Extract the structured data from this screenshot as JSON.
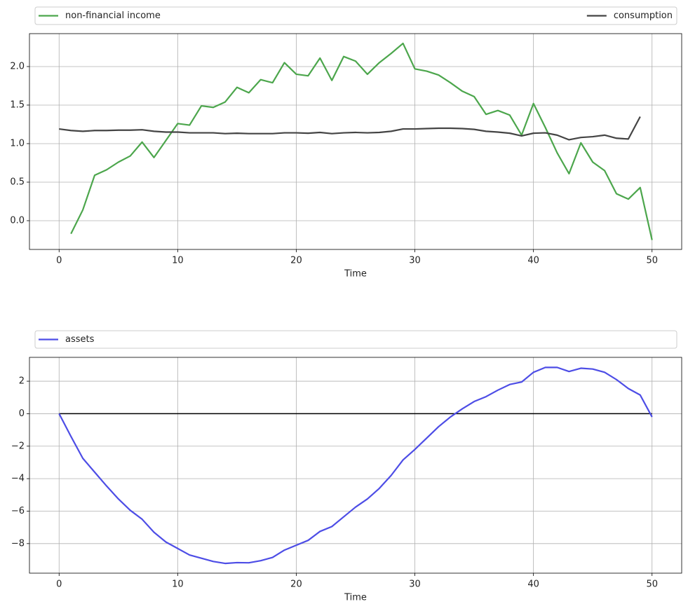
{
  "chart_data": [
    {
      "type": "line",
      "x_label": "Time",
      "legend": "above",
      "grid": true,
      "x": [
        0,
        1,
        2,
        3,
        4,
        5,
        6,
        7,
        8,
        9,
        10,
        11,
        12,
        13,
        14,
        15,
        16,
        17,
        18,
        19,
        20,
        21,
        22,
        23,
        24,
        25,
        26,
        27,
        28,
        29,
        30,
        31,
        32,
        33,
        34,
        35,
        36,
        37,
        38,
        39,
        40,
        41,
        42,
        43,
        44,
        45,
        46,
        47,
        48,
        49,
        50
      ],
      "series": [
        {
          "name": "non-financial income",
          "color": "#4ca64c",
          "values": [
            null,
            -0.17,
            0.14,
            0.59,
            0.66,
            0.76,
            0.84,
            1.02,
            0.82,
            1.04,
            1.26,
            1.24,
            1.49,
            1.47,
            1.54,
            1.73,
            1.66,
            1.83,
            1.79,
            2.05,
            1.9,
            1.88,
            2.11,
            1.82,
            2.13,
            2.07,
            1.9,
            2.05,
            2.17,
            2.3,
            1.97,
            1.94,
            1.89,
            1.79,
            1.68,
            1.61,
            1.38,
            1.43,
            1.37,
            1.11,
            1.52,
            1.21,
            0.88,
            0.61,
            1.01,
            0.76,
            0.65,
            0.35,
            0.28,
            0.43,
            -0.25
          ]
        },
        {
          "name": "consumption",
          "color": "#444444",
          "values": [
            1.19,
            1.17,
            1.16,
            1.17,
            1.17,
            1.175,
            1.175,
            1.18,
            1.16,
            1.15,
            1.15,
            1.14,
            1.14,
            1.14,
            1.13,
            1.135,
            1.13,
            1.13,
            1.13,
            1.14,
            1.14,
            1.135,
            1.145,
            1.13,
            1.14,
            1.145,
            1.14,
            1.145,
            1.16,
            1.19,
            1.19,
            1.195,
            1.2,
            1.2,
            1.195,
            1.185,
            1.16,
            1.15,
            1.135,
            1.1,
            1.135,
            1.14,
            1.11,
            1.05,
            1.08,
            1.09,
            1.11,
            1.07,
            1.06,
            1.35,
            null
          ]
        }
      ],
      "xlim": [
        -2.5,
        52.5
      ],
      "xticks": [
        0,
        10,
        20,
        30,
        40,
        50
      ],
      "ylim": [
        -0.373,
        2.427
      ],
      "yticks": [
        {
          "value": 0,
          "label": "0.0"
        },
        0.5,
        {
          "value": 1,
          "label": "1.0"
        },
        1.5,
        {
          "value": 2,
          "label": "2.0"
        }
      ]
    },
    {
      "type": "line",
      "x_label": "Time",
      "legend": "above",
      "grid": true,
      "reference_line": 0,
      "x": [
        0,
        1,
        2,
        3,
        4,
        5,
        6,
        7,
        8,
        9,
        10,
        11,
        12,
        13,
        14,
        15,
        16,
        17,
        18,
        19,
        20,
        21,
        22,
        23,
        24,
        25,
        26,
        27,
        28,
        29,
        30,
        31,
        32,
        33,
        34,
        35,
        36,
        37,
        38,
        39,
        40,
        41,
        42,
        43,
        44,
        45,
        46,
        47,
        48,
        49,
        50
      ],
      "series": [
        {
          "name": "assets",
          "color": "#4d4de6",
          "values": [
            0,
            -1.4,
            -2.75,
            -3.6,
            -4.45,
            -5.25,
            -5.95,
            -6.5,
            -7.3,
            -7.9,
            -8.3,
            -8.7,
            -8.9,
            -9.1,
            -9.22,
            -9.17,
            -9.18,
            -9.05,
            -8.85,
            -8.4,
            -8.1,
            -7.8,
            -7.25,
            -6.95,
            -6.35,
            -5.75,
            -5.25,
            -4.6,
            -3.8,
            -2.85,
            -2.2,
            -1.5,
            -0.8,
            -0.2,
            0.3,
            0.75,
            1.05,
            1.45,
            1.8,
            1.95,
            2.55,
            2.85,
            2.85,
            2.6,
            2.8,
            2.75,
            2.55,
            2.1,
            1.55,
            1.15,
            -0.2
          ]
        }
      ],
      "xlim": [
        -2.5,
        52.5
      ],
      "xticks": [
        0,
        10,
        20,
        30,
        40,
        50
      ],
      "ylim": [
        -9.82,
        3.47
      ],
      "yticks": [
        {
          "value": -8,
          "label": "−8"
        },
        {
          "value": -6,
          "label": "−6"
        },
        {
          "value": -4,
          "label": "−4"
        },
        {
          "value": -2,
          "label": "−2"
        },
        0,
        2
      ]
    }
  ]
}
